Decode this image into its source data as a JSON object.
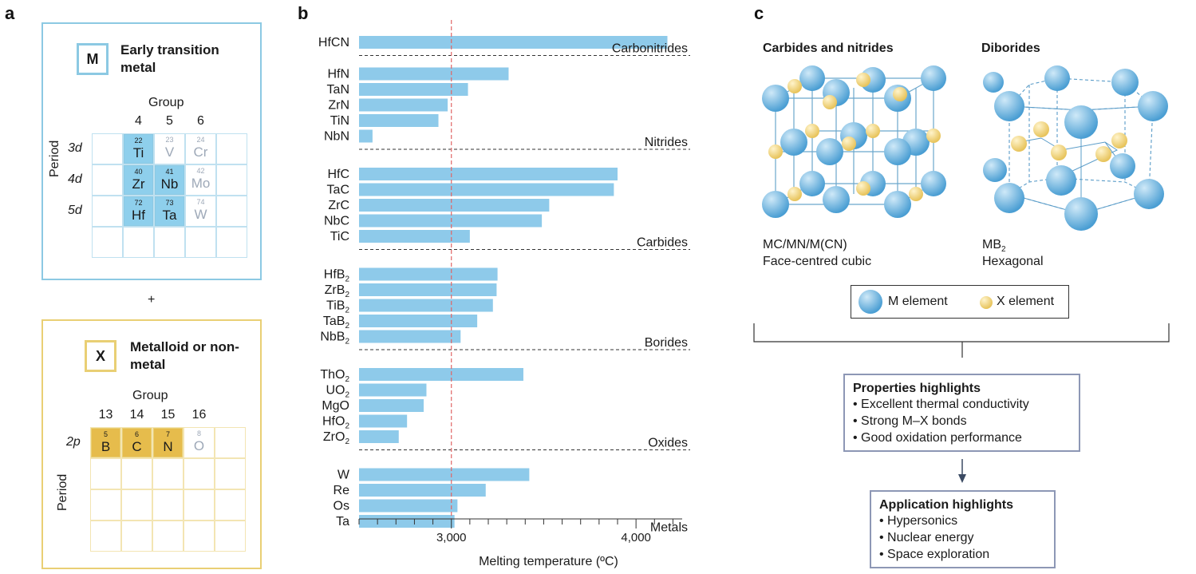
{
  "panels": {
    "a": "a",
    "b": "b",
    "c": "c"
  },
  "panel_a": {
    "m_box": {
      "symbol": "M",
      "title": "Early transition metal",
      "group_label": "Group",
      "period_label": "Period",
      "groups": [
        "4",
        "5",
        "6"
      ],
      "periods": [
        "3d",
        "4d",
        "5d"
      ],
      "elements": [
        [
          {
            "num": "22",
            "sym": "Ti",
            "active": true
          },
          {
            "num": "23",
            "sym": "V",
            "active": false
          },
          {
            "num": "24",
            "sym": "Cr",
            "active": false
          }
        ],
        [
          {
            "num": "40",
            "sym": "Zr",
            "active": true
          },
          {
            "num": "41",
            "sym": "Nb",
            "active": true
          },
          {
            "num": "42",
            "sym": "Mo",
            "active": false
          }
        ],
        [
          {
            "num": "72",
            "sym": "Hf",
            "active": true
          },
          {
            "num": "73",
            "sym": "Ta",
            "active": true
          },
          {
            "num": "74",
            "sym": "W",
            "active": false
          }
        ]
      ]
    },
    "plus": "+",
    "x_box": {
      "symbol": "X",
      "title": "Metalloid or non-metal",
      "group_label": "Group",
      "period_label": "Period",
      "groups": [
        "13",
        "14",
        "15",
        "16"
      ],
      "periods": [
        "2p"
      ],
      "elements": [
        [
          {
            "num": "5",
            "sym": "B",
            "active": true
          },
          {
            "num": "6",
            "sym": "C",
            "active": true
          },
          {
            "num": "7",
            "sym": "N",
            "active": true
          },
          {
            "num": "8",
            "sym": "O",
            "active": false
          }
        ]
      ]
    },
    "colors": {
      "m_border": "#8cc9e3",
      "m_fill": "#8ecfec",
      "x_border": "#e9cf74",
      "x_fill": "#e6bc4c",
      "inactive_text": "#9ea9b8"
    }
  },
  "chart_data": {
    "type": "bar",
    "orientation": "horizontal",
    "xlabel": "Melting temperature (ºC)",
    "xlim": [
      2500,
      4250
    ],
    "xticks": [
      3000,
      4000
    ],
    "xtick_labels": [
      "3,000",
      "4,000"
    ],
    "reference_line": 3000,
    "bar_color": "#8ecaea",
    "groups": [
      {
        "name": "Carbonitrides",
        "items": [
          {
            "label": "HfCN",
            "value": 4170
          }
        ]
      },
      {
        "name": "Nitrides",
        "items": [
          {
            "label": "HfN",
            "value": 3310
          },
          {
            "label": "TaN",
            "value": 3090
          },
          {
            "label": "ZrN",
            "value": 2980
          },
          {
            "label": "TiN",
            "value": 2930
          },
          {
            "label": "NbN",
            "value": 2573
          }
        ]
      },
      {
        "name": "Carbides",
        "items": [
          {
            "label": "HfC",
            "value": 3900
          },
          {
            "label": "TaC",
            "value": 3880
          },
          {
            "label": "ZrC",
            "value": 3530
          },
          {
            "label": "NbC",
            "value": 3490
          },
          {
            "label": "TiC",
            "value": 3100
          }
        ]
      },
      {
        "name": "Borides",
        "items": [
          {
            "label": "HfB",
            "sub": "2",
            "value": 3250
          },
          {
            "label": "ZrB",
            "sub": "2",
            "value": 3245
          },
          {
            "label": "TiB",
            "sub": "2",
            "value": 3225
          },
          {
            "label": "TaB",
            "sub": "2",
            "value": 3140
          },
          {
            "label": "NbB",
            "sub": "2",
            "value": 3050
          }
        ]
      },
      {
        "name": "Oxides",
        "items": [
          {
            "label": "ThO",
            "sub": "2",
            "value": 3390
          },
          {
            "label": "UO",
            "sub": "2",
            "value": 2865
          },
          {
            "label": "MgO",
            "value": 2850
          },
          {
            "label": "HfO",
            "sub": "2",
            "value": 2760
          },
          {
            "label": "ZrO",
            "sub": "2",
            "value": 2715
          }
        ]
      },
      {
        "name": "Metals",
        "items": [
          {
            "label": "W",
            "value": 3422
          },
          {
            "label": "Re",
            "value": 3186
          },
          {
            "label": "Os",
            "value": 3033
          },
          {
            "label": "Ta",
            "value": 3017
          }
        ]
      }
    ]
  },
  "panel_c": {
    "carbides_title": "Carbides and nitrides",
    "diborides_title": "Diborides",
    "fcc_formula": "MC/MN/M(CN)",
    "fcc_name": "Face-centred cubic",
    "mb2_main": "MB",
    "mb2_sub": "2",
    "hex_name": "Hexagonal",
    "legend_m": "M element",
    "legend_x": "X element",
    "properties": {
      "title": "Properties highlights",
      "items": [
        "Excellent thermal conductivity",
        "Strong M–X bonds",
        "Good oxidation performance"
      ]
    },
    "applications": {
      "title": "Application highlights",
      "items": [
        "Hypersonics",
        "Nuclear energy",
        "Space exploration"
      ]
    },
    "colors": {
      "m_atom": "#6fb6e0",
      "x_atom": "#f1d480",
      "box_border": "#8d97b5",
      "arrow": "#3b4a63"
    }
  }
}
